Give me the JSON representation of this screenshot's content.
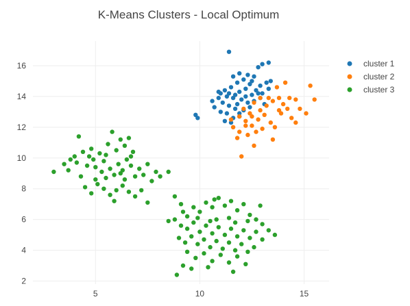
{
  "chart_data": {
    "type": "scatter",
    "title": "K-Means Clusters - Local Optimum",
    "xlabel": "",
    "ylabel": "",
    "xlim": [
      2.0,
      16.2
    ],
    "ylim": [
      1.8,
      17.6
    ],
    "xticks": [
      5,
      10,
      15
    ],
    "yticks": [
      2,
      4,
      6,
      8,
      10,
      12,
      14,
      16
    ],
    "grid": true,
    "legend_position": "top-right",
    "series": [
      {
        "name": "cluster 1",
        "color": "#1f77b4",
        "points": [
          [
            11.4,
            16.9
          ],
          [
            12.8,
            15.9
          ],
          [
            13.0,
            16.1
          ],
          [
            13.3,
            16.2
          ],
          [
            12.3,
            15.4
          ],
          [
            12.6,
            15.3
          ],
          [
            12.1,
            15.1
          ],
          [
            11.8,
            14.9
          ],
          [
            12.4,
            14.8
          ],
          [
            12.9,
            14.7
          ],
          [
            13.2,
            14.9
          ],
          [
            13.4,
            15.0
          ],
          [
            11.2,
            14.4
          ],
          [
            11.5,
            14.6
          ],
          [
            11.9,
            14.3
          ],
          [
            12.2,
            14.5
          ],
          [
            12.5,
            14.1
          ],
          [
            12.7,
            14.4
          ],
          [
            13.0,
            14.2
          ],
          [
            13.3,
            14.5
          ],
          [
            11.0,
            14.2
          ],
          [
            11.3,
            14.0
          ],
          [
            11.6,
            13.9
          ],
          [
            12.0,
            13.8
          ],
          [
            12.3,
            13.6
          ],
          [
            12.6,
            13.7
          ],
          [
            12.9,
            13.9
          ],
          [
            13.1,
            13.5
          ],
          [
            11.1,
            13.6
          ],
          [
            11.4,
            13.4
          ],
          [
            11.7,
            13.2
          ],
          [
            12.1,
            13.1
          ],
          [
            12.4,
            13.3
          ],
          [
            10.7,
            13.3
          ],
          [
            11.0,
            13.0
          ],
          [
            11.3,
            12.9
          ],
          [
            11.6,
            12.6
          ],
          [
            11.9,
            12.7
          ],
          [
            10.6,
            13.7
          ],
          [
            10.9,
            13.9
          ],
          [
            12.2,
            14.0
          ],
          [
            11.7,
            14.1
          ],
          [
            11.5,
            12.3
          ],
          [
            11.2,
            12.4
          ],
          [
            9.8,
            12.8
          ],
          [
            9.9,
            12.6
          ],
          [
            12.8,
            14.2
          ],
          [
            11.8,
            13.5
          ],
          [
            11.9,
            12.9
          ],
          [
            12.5,
            15.0
          ],
          [
            11.6,
            15.3
          ],
          [
            11.9,
            15.5
          ],
          [
            10.9,
            14.3
          ],
          [
            11.4,
            14.2
          ]
        ]
      },
      {
        "name": "cluster 2",
        "color": "#ff7f0e",
        "points": [
          [
            14.1,
            14.9
          ],
          [
            13.7,
            14.6
          ],
          [
            15.3,
            14.7
          ],
          [
            15.5,
            13.8
          ],
          [
            14.8,
            13.2
          ],
          [
            15.1,
            12.9
          ],
          [
            14.4,
            12.6
          ],
          [
            14.6,
            12.3
          ],
          [
            13.8,
            13.9
          ],
          [
            14.0,
            13.5
          ],
          [
            14.2,
            13.2
          ],
          [
            13.5,
            13.7
          ],
          [
            13.2,
            13.4
          ],
          [
            12.9,
            13.1
          ],
          [
            12.6,
            13.6
          ],
          [
            12.4,
            12.9
          ],
          [
            12.1,
            13.2
          ],
          [
            11.9,
            12.7
          ],
          [
            12.2,
            12.4
          ],
          [
            12.5,
            12.1
          ],
          [
            12.8,
            12.5
          ],
          [
            13.1,
            12.8
          ],
          [
            13.4,
            12.3
          ],
          [
            13.6,
            12.0
          ],
          [
            13.0,
            11.9
          ],
          [
            12.7,
            11.7
          ],
          [
            12.3,
            11.5
          ],
          [
            11.9,
            11.7
          ],
          [
            11.6,
            12.0
          ],
          [
            11.8,
            11.3
          ],
          [
            13.5,
            11.2
          ],
          [
            12.6,
            10.8
          ],
          [
            12.0,
            10.1
          ],
          [
            13.8,
            13.1
          ],
          [
            14.3,
            13.9
          ],
          [
            13.3,
            13.9
          ],
          [
            12.9,
            13.9
          ],
          [
            12.5,
            12.7
          ],
          [
            12.2,
            12.1
          ],
          [
            11.5,
            12.5
          ],
          [
            13.9,
            12.9
          ],
          [
            14.6,
            13.8
          ]
        ]
      },
      {
        "name": "cluster 3",
        "color": "#2ca02c",
        "points": [
          [
            3.0,
            9.1
          ],
          [
            3.5,
            9.6
          ],
          [
            3.7,
            9.2
          ],
          [
            4.0,
            10.1
          ],
          [
            4.2,
            11.4
          ],
          [
            4.4,
            10.4
          ],
          [
            4.1,
            9.7
          ],
          [
            4.6,
            9.5
          ],
          [
            4.3,
            8.8
          ],
          [
            4.8,
            10.6
          ],
          [
            4.9,
            9.9
          ],
          [
            5.2,
            10.3
          ],
          [
            5.0,
            9.4
          ],
          [
            5.4,
            9.8
          ],
          [
            5.6,
            10.9
          ],
          [
            5.8,
            11.7
          ],
          [
            6.0,
            10.5
          ],
          [
            6.2,
            11.2
          ],
          [
            6.4,
            10.8
          ],
          [
            6.6,
            11.3
          ],
          [
            6.8,
            10.4
          ],
          [
            5.3,
            9.1
          ],
          [
            5.5,
            8.7
          ],
          [
            5.7,
            9.3
          ],
          [
            5.9,
            8.9
          ],
          [
            6.1,
            9.6
          ],
          [
            6.3,
            9.2
          ],
          [
            6.5,
            9.9
          ],
          [
            6.7,
            9.5
          ],
          [
            6.9,
            8.8
          ],
          [
            7.1,
            9.3
          ],
          [
            7.3,
            8.9
          ],
          [
            7.5,
            9.6
          ],
          [
            7.7,
            8.5
          ],
          [
            7.9,
            9.1
          ],
          [
            8.1,
            8.8
          ],
          [
            8.5,
            9.1
          ],
          [
            4.5,
            8.1
          ],
          [
            4.8,
            7.7
          ],
          [
            5.1,
            8.3
          ],
          [
            5.4,
            8.0
          ],
          [
            5.7,
            7.6
          ],
          [
            6.0,
            7.9
          ],
          [
            6.3,
            8.2
          ],
          [
            6.6,
            7.8
          ],
          [
            6.9,
            7.5
          ],
          [
            7.2,
            7.9
          ],
          [
            7.5,
            7.1
          ],
          [
            5.9,
            7.2
          ],
          [
            4.7,
            10.1
          ],
          [
            5.5,
            10.2
          ],
          [
            6.7,
            10.1
          ],
          [
            6.2,
            9.0
          ],
          [
            5.0,
            8.6
          ],
          [
            6.4,
            8.6
          ],
          [
            3.8,
            9.9
          ],
          [
            8.8,
            7.5
          ],
          [
            9.1,
            7.0
          ],
          [
            9.4,
            6.2
          ],
          [
            9.7,
            6.8
          ],
          [
            10.0,
            6.5
          ],
          [
            10.3,
            7.1
          ],
          [
            10.6,
            6.8
          ],
          [
            10.9,
            7.4
          ],
          [
            11.2,
            6.9
          ],
          [
            11.5,
            7.2
          ],
          [
            11.8,
            6.6
          ],
          [
            12.1,
            7.0
          ],
          [
            12.4,
            6.3
          ],
          [
            12.7,
            6.0
          ],
          [
            13.0,
            5.7
          ],
          [
            13.3,
            5.3
          ],
          [
            13.6,
            5.0
          ],
          [
            8.5,
            5.9
          ],
          [
            8.8,
            6.0
          ],
          [
            9.1,
            5.6
          ],
          [
            9.4,
            5.4
          ],
          [
            9.7,
            5.8
          ],
          [
            10.0,
            5.2
          ],
          [
            10.3,
            5.6
          ],
          [
            10.6,
            5.1
          ],
          [
            10.9,
            5.5
          ],
          [
            11.2,
            5.0
          ],
          [
            11.5,
            5.4
          ],
          [
            11.8,
            4.9
          ],
          [
            12.1,
            5.3
          ],
          [
            12.4,
            4.8
          ],
          [
            12.7,
            5.2
          ],
          [
            13.0,
            4.7
          ],
          [
            9.0,
            4.8
          ],
          [
            9.3,
            4.5
          ],
          [
            9.6,
            4.9
          ],
          [
            9.9,
            4.4
          ],
          [
            10.2,
            4.7
          ],
          [
            10.5,
            4.2
          ],
          [
            10.8,
            4.6
          ],
          [
            11.1,
            4.1
          ],
          [
            11.4,
            4.5
          ],
          [
            11.7,
            4.0
          ],
          [
            12.0,
            4.4
          ],
          [
            12.3,
            3.9
          ],
          [
            12.6,
            4.2
          ],
          [
            9.4,
            3.9
          ],
          [
            9.8,
            3.5
          ],
          [
            10.2,
            3.8
          ],
          [
            10.6,
            3.3
          ],
          [
            11.0,
            3.7
          ],
          [
            11.4,
            3.2
          ],
          [
            11.8,
            3.6
          ],
          [
            12.2,
            3.1
          ],
          [
            9.2,
            3.0
          ],
          [
            9.6,
            2.8
          ],
          [
            10.4,
            2.9
          ],
          [
            8.9,
            2.4
          ],
          [
            11.6,
            2.6
          ],
          [
            12.9,
            6.9
          ],
          [
            12.3,
            5.9
          ],
          [
            11.7,
            5.8
          ],
          [
            10.8,
            6.0
          ],
          [
            9.9,
            6.1
          ],
          [
            10.5,
            5.9
          ],
          [
            11.4,
            6.1
          ],
          [
            9.2,
            6.5
          ],
          [
            10.7,
            7.3
          ]
        ]
      }
    ]
  }
}
